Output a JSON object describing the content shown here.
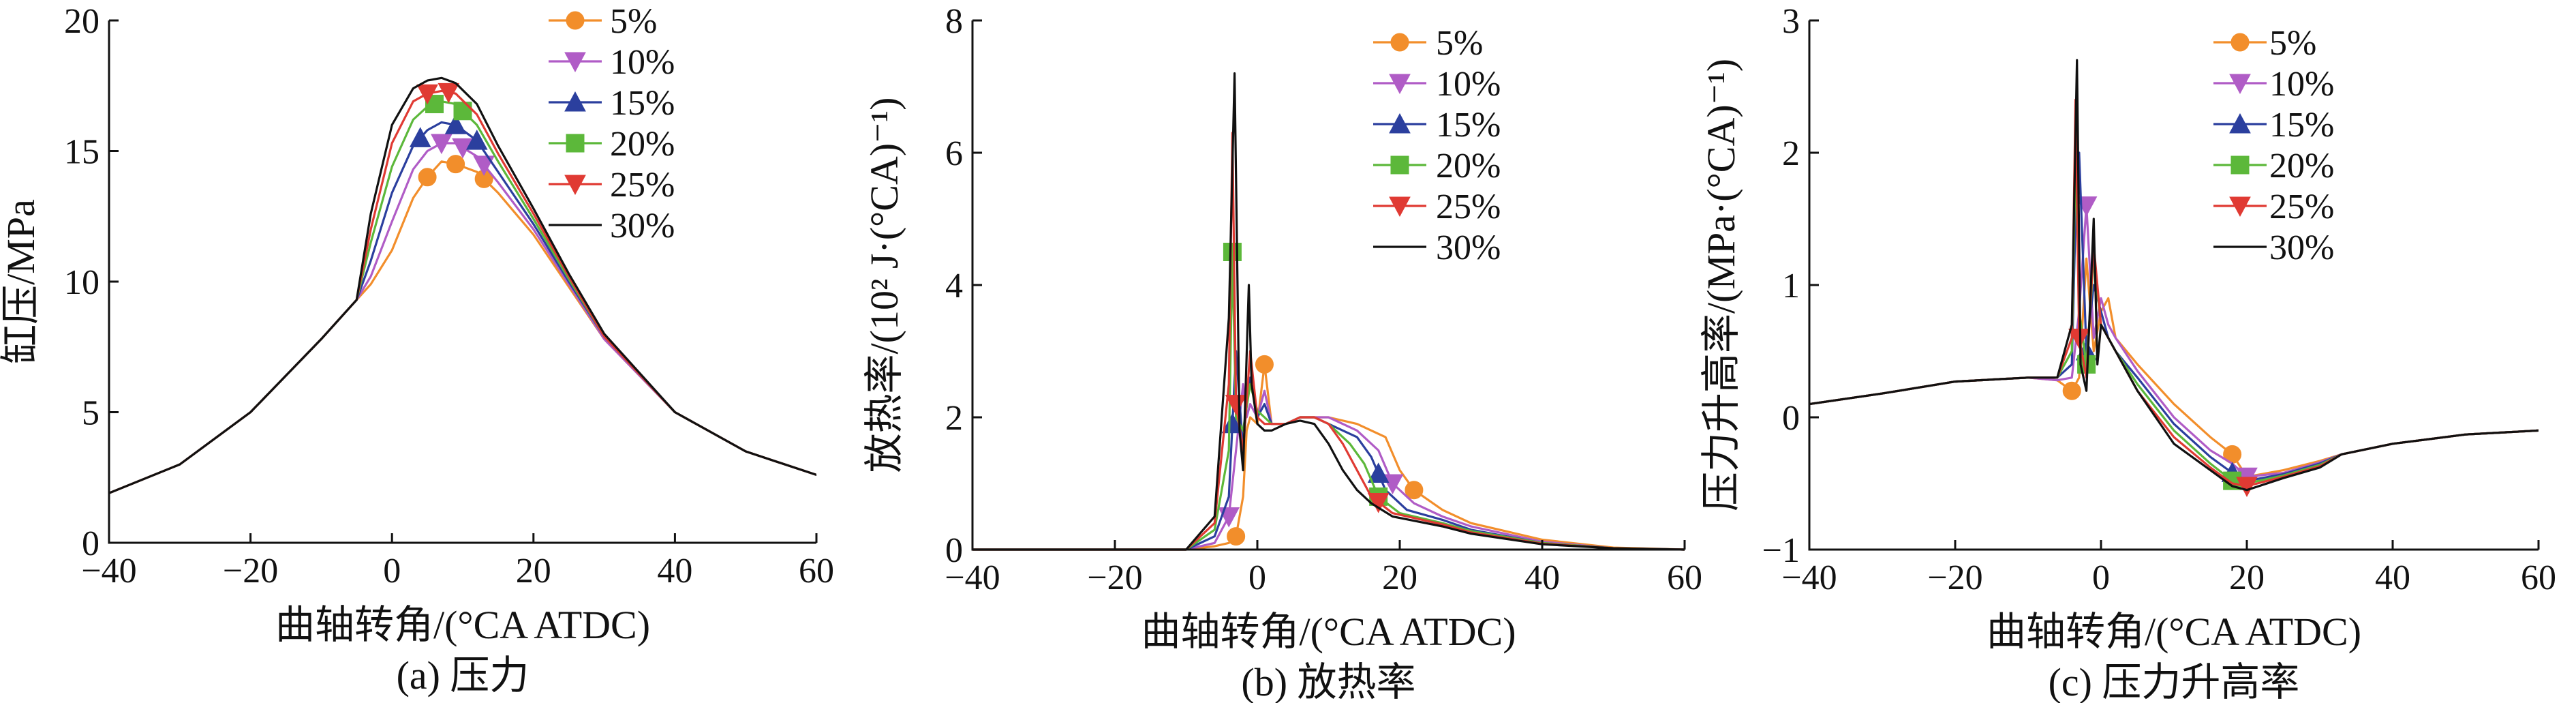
{
  "chart_data": [
    {
      "type": "line",
      "caption": "(a) 压力",
      "xlabel": "曲轴转角/(°CA ATDC)",
      "ylabel": "缸压/MPa",
      "xlim": [
        -40,
        60
      ],
      "ylim": [
        0,
        20
      ],
      "xticks": [
        -40,
        -20,
        0,
        20,
        40,
        60
      ],
      "yticks": [
        0,
        5,
        10,
        15,
        20
      ],
      "legend_position": "top-right",
      "series": [
        {
          "name": "5%",
          "color": "#f28e2b",
          "marker": "circle",
          "x": [
            -40,
            -30,
            -20,
            -10,
            -5,
            -3,
            0,
            3,
            5,
            7,
            9,
            12,
            15,
            20,
            25,
            30,
            40,
            50,
            60
          ],
          "y": [
            1.9,
            3.0,
            5.0,
            7.8,
            9.3,
            9.9,
            11.2,
            13.2,
            14.0,
            14.6,
            14.5,
            14.2,
            13.4,
            11.8,
            9.8,
            7.8,
            5.0,
            3.5,
            2.6
          ],
          "marker_x": [
            5,
            9,
            13
          ]
        },
        {
          "name": "10%",
          "color": "#b05cc6",
          "marker": "triangle-down",
          "x": [
            -40,
            -30,
            -20,
            -10,
            -5,
            -3,
            0,
            3,
            5,
            7,
            9,
            12,
            15,
            20,
            25,
            30,
            40,
            50,
            60
          ],
          "y": [
            1.9,
            3.0,
            5.0,
            7.8,
            9.3,
            10.2,
            12.3,
            14.3,
            15.0,
            15.3,
            15.3,
            14.8,
            13.8,
            12.0,
            9.9,
            7.8,
            5.0,
            3.5,
            2.6
          ],
          "marker_x": [
            7,
            10,
            13
          ]
        },
        {
          "name": "15%",
          "color": "#2b3f9e",
          "marker": "triangle-up",
          "x": [
            -40,
            -30,
            -20,
            -10,
            -5,
            -3,
            0,
            3,
            5,
            7,
            9,
            12,
            15,
            20,
            25,
            30,
            40,
            50,
            60
          ],
          "y": [
            1.9,
            3.0,
            5.0,
            7.8,
            9.3,
            10.8,
            13.4,
            15.2,
            15.8,
            16.1,
            16.0,
            15.4,
            14.2,
            12.2,
            10.0,
            7.9,
            5.0,
            3.5,
            2.6
          ],
          "marker_x": [
            4,
            9,
            12
          ]
        },
        {
          "name": "20%",
          "color": "#5cb83a",
          "marker": "square",
          "x": [
            -40,
            -30,
            -20,
            -10,
            -5,
            -3,
            0,
            3,
            5,
            7,
            9,
            12,
            15,
            20,
            25,
            30,
            40,
            50,
            60
          ],
          "y": [
            1.9,
            3.0,
            5.0,
            7.8,
            9.3,
            11.5,
            14.4,
            16.2,
            16.7,
            16.9,
            16.8,
            16.0,
            14.6,
            12.4,
            10.1,
            7.9,
            5.0,
            3.5,
            2.6
          ],
          "marker_x": [
            6,
            10
          ]
        },
        {
          "name": "25%",
          "color": "#e03a33",
          "marker": "triangle-down",
          "x": [
            -40,
            -30,
            -20,
            -10,
            -5,
            -3,
            0,
            3,
            5,
            7,
            9,
            12,
            15,
            20,
            25,
            30,
            40,
            50,
            60
          ],
          "y": [
            1.9,
            3.0,
            5.0,
            7.8,
            9.3,
            12.0,
            15.3,
            16.9,
            17.2,
            17.3,
            17.2,
            16.4,
            14.9,
            12.6,
            10.2,
            7.9,
            5.0,
            3.5,
            2.6
          ],
          "marker_x": [
            5,
            8
          ]
        },
        {
          "name": "30%",
          "color": "#111111",
          "marker": "none",
          "x": [
            -40,
            -30,
            -20,
            -10,
            -5,
            -3,
            0,
            3,
            5,
            7,
            9,
            12,
            15,
            20,
            25,
            30,
            40,
            50,
            60
          ],
          "y": [
            1.9,
            3.0,
            5.0,
            7.8,
            9.3,
            12.6,
            16.0,
            17.4,
            17.7,
            17.8,
            17.6,
            16.8,
            15.2,
            12.8,
            10.3,
            8.0,
            5.0,
            3.5,
            2.6
          ],
          "marker_x": []
        }
      ]
    },
    {
      "type": "line",
      "caption": "(b) 放热率",
      "xlabel": "曲轴转角/(°CA ATDC)",
      "ylabel": "放热率/(10² J·(°CA)⁻¹)",
      "xlim": [
        -40,
        60
      ],
      "ylim": [
        0,
        8
      ],
      "xticks": [
        -40,
        -20,
        0,
        20,
        40,
        60
      ],
      "yticks": [
        0,
        2,
        4,
        6,
        8
      ],
      "legend_position": "top-right",
      "series": [
        {
          "name": "5%",
          "color": "#f28e2b",
          "marker": "circle",
          "x": [
            -40,
            -10,
            -6,
            -4,
            -3,
            -2,
            -1.5,
            -1,
            0,
            1,
            2,
            4,
            6,
            8,
            10,
            14,
            18,
            20,
            22,
            26,
            30,
            40,
            50,
            60
          ],
          "y": [
            0,
            0,
            0.05,
            0.1,
            0.2,
            0.8,
            1.8,
            2.0,
            1.9,
            2.8,
            1.9,
            1.9,
            2.0,
            2.0,
            2.0,
            1.9,
            1.7,
            1.2,
            0.9,
            0.6,
            0.4,
            0.15,
            0.03,
            0
          ],
          "marker_x": [
            -3,
            1,
            22
          ]
        },
        {
          "name": "10%",
          "color": "#b05cc6",
          "marker": "triangle-down",
          "x": [
            -40,
            -10,
            -6,
            -4,
            -3,
            -2,
            -1.5,
            -1,
            0,
            1,
            2,
            4,
            6,
            8,
            10,
            14,
            17,
            19,
            22,
            26,
            30,
            40,
            50,
            60
          ],
          "y": [
            0,
            0,
            0.1,
            0.5,
            1.5,
            2.5,
            2.0,
            2.2,
            2.0,
            2.4,
            1.9,
            1.9,
            2.0,
            2.0,
            2.0,
            1.8,
            1.5,
            1.0,
            0.7,
            0.5,
            0.35,
            0.12,
            0.02,
            0
          ],
          "marker_x": [
            -4,
            19
          ]
        },
        {
          "name": "15%",
          "color": "#2b3f9e",
          "marker": "triangle-up",
          "x": [
            -40,
            -10,
            -6,
            -4,
            -3,
            -2,
            -1.5,
            -1,
            0,
            1,
            2,
            4,
            6,
            8,
            10,
            14,
            16,
            18,
            21,
            26,
            30,
            40,
            50,
            60
          ],
          "y": [
            0,
            0,
            0.2,
            0.8,
            3.0,
            1.5,
            2.2,
            2.6,
            2.0,
            2.2,
            1.9,
            1.9,
            2.0,
            2.0,
            1.9,
            1.7,
            1.4,
            0.9,
            0.6,
            0.45,
            0.3,
            0.1,
            0.02,
            0
          ],
          "marker_x": [
            -3.5,
            17
          ]
        },
        {
          "name": "20%",
          "color": "#5cb83a",
          "marker": "square",
          "x": [
            -40,
            -10,
            -6,
            -4,
            -3.5,
            -3,
            -2,
            -1,
            0,
            1,
            2,
            4,
            6,
            8,
            10,
            13,
            15,
            17,
            20,
            26,
            30,
            40,
            50,
            60
          ],
          "y": [
            0,
            0,
            0.3,
            1.5,
            4.5,
            2.0,
            1.8,
            2.5,
            2.1,
            2.0,
            1.9,
            1.9,
            2.0,
            2.0,
            1.9,
            1.6,
            1.3,
            0.8,
            0.55,
            0.4,
            0.28,
            0.1,
            0.02,
            0
          ],
          "marker_x": [
            -3.5,
            17
          ]
        },
        {
          "name": "25%",
          "color": "#e03a33",
          "marker": "triangle-down",
          "x": [
            -40,
            -10,
            -6,
            -4,
            -3.5,
            -3,
            -2,
            -1,
            0,
            1,
            2,
            4,
            6,
            8,
            10,
            12,
            14,
            16,
            19,
            26,
            30,
            40,
            50,
            60
          ],
          "y": [
            0,
            0,
            0.4,
            2.5,
            6.3,
            2.2,
            1.5,
            3.0,
            2.0,
            1.9,
            1.9,
            1.9,
            2.0,
            2.0,
            1.9,
            1.6,
            1.2,
            0.8,
            0.55,
            0.38,
            0.26,
            0.09,
            0.02,
            0
          ],
          "marker_x": [
            -3,
            17
          ]
        },
        {
          "name": "30%",
          "color": "#111111",
          "marker": "none",
          "x": [
            -40,
            -10,
            -6,
            -4,
            -3.2,
            -2.5,
            -2,
            -1.2,
            -0.8,
            0,
            1,
            2,
            4,
            6,
            8,
            10,
            12,
            14,
            16,
            19,
            26,
            30,
            40,
            50,
            60
          ],
          "y": [
            0,
            0,
            0.5,
            3.5,
            7.2,
            1.8,
            1.2,
            4.0,
            2.5,
            1.9,
            1.8,
            1.8,
            1.9,
            1.95,
            1.9,
            1.6,
            1.2,
            0.9,
            0.7,
            0.5,
            0.35,
            0.24,
            0.08,
            0.02,
            0
          ],
          "marker_x": []
        }
      ]
    },
    {
      "type": "line",
      "caption": "(c) 压力升高率",
      "xlabel": "曲轴转角/(°CA ATDC)",
      "ylabel": "压力升高率/(MPa·(°CA)⁻¹)",
      "xlim": [
        -40,
        60
      ],
      "ylim": [
        -1,
        3
      ],
      "xticks": [
        -40,
        -20,
        0,
        20,
        40,
        60
      ],
      "yticks": [
        -1,
        0,
        1,
        2,
        3
      ],
      "legend_position": "top-right",
      "series": [
        {
          "name": "5%",
          "color": "#f28e2b",
          "marker": "circle",
          "x": [
            -40,
            -30,
            -20,
            -10,
            -6,
            -4,
            -3,
            -2,
            -1,
            0,
            1,
            2,
            5,
            10,
            15,
            18,
            20,
            25,
            30,
            33,
            40,
            50,
            60
          ],
          "y": [
            0.1,
            0.18,
            0.27,
            0.3,
            0.28,
            0.2,
            0.3,
            1.2,
            0.5,
            0.8,
            0.9,
            0.6,
            0.4,
            0.1,
            -0.15,
            -0.28,
            -0.45,
            -0.4,
            -0.33,
            -0.28,
            -0.2,
            -0.13,
            -0.1
          ],
          "marker_x": [
            -4,
            18
          ]
        },
        {
          "name": "10%",
          "color": "#b05cc6",
          "marker": "triangle-down",
          "x": [
            -40,
            -30,
            -20,
            -10,
            -6,
            -4,
            -3,
            -2,
            -1,
            0,
            1,
            2,
            5,
            10,
            15,
            18,
            20,
            25,
            30,
            33,
            40,
            50,
            60
          ],
          "y": [
            0.1,
            0.18,
            0.27,
            0.3,
            0.28,
            0.3,
            0.8,
            1.6,
            0.6,
            0.9,
            0.7,
            0.6,
            0.35,
            0.0,
            -0.25,
            -0.35,
            -0.45,
            -0.42,
            -0.34,
            -0.28,
            -0.2,
            -0.13,
            -0.1
          ],
          "marker_x": [
            -2,
            20
          ]
        },
        {
          "name": "15%",
          "color": "#2b3f9e",
          "marker": "triangle-up",
          "x": [
            -40,
            -30,
            -20,
            -10,
            -6,
            -4,
            -3.5,
            -3,
            -2,
            -1,
            0,
            1,
            2,
            5,
            10,
            15,
            18,
            20,
            25,
            30,
            33,
            40,
            50,
            60
          ],
          "y": [
            0.1,
            0.18,
            0.27,
            0.3,
            0.3,
            0.4,
            1.5,
            2.0,
            0.5,
            1.0,
            0.8,
            0.6,
            0.5,
            0.3,
            -0.05,
            -0.3,
            -0.42,
            -0.48,
            -0.43,
            -0.35,
            -0.28,
            -0.2,
            -0.13,
            -0.1
          ],
          "marker_x": [
            -2,
            18
          ]
        },
        {
          "name": "20%",
          "color": "#5cb83a",
          "marker": "square",
          "x": [
            -40,
            -30,
            -20,
            -10,
            -6,
            -4,
            -3.5,
            -3,
            -2,
            -1,
            0,
            1,
            2,
            5,
            10,
            15,
            18,
            20,
            25,
            30,
            33,
            40,
            50,
            60
          ],
          "y": [
            0.1,
            0.18,
            0.27,
            0.3,
            0.3,
            0.5,
            2.0,
            0.8,
            0.4,
            1.2,
            0.7,
            0.6,
            0.5,
            0.25,
            -0.1,
            -0.35,
            -0.48,
            -0.5,
            -0.44,
            -0.36,
            -0.28,
            -0.2,
            -0.13,
            -0.1
          ],
          "marker_x": [
            -2,
            18
          ]
        },
        {
          "name": "25%",
          "color": "#e03a33",
          "marker": "triangle-down",
          "x": [
            -40,
            -30,
            -20,
            -10,
            -6,
            -4,
            -3.5,
            -3,
            -2,
            -1,
            0,
            1,
            2,
            5,
            10,
            15,
            18,
            20,
            25,
            30,
            33,
            40,
            50,
            60
          ],
          "y": [
            0.1,
            0.18,
            0.27,
            0.3,
            0.3,
            0.6,
            2.4,
            0.6,
            0.3,
            1.3,
            0.7,
            0.6,
            0.5,
            0.2,
            -0.15,
            -0.38,
            -0.5,
            -0.52,
            -0.45,
            -0.37,
            -0.28,
            -0.2,
            -0.13,
            -0.1
          ],
          "marker_x": [
            -3,
            20
          ]
        },
        {
          "name": "30%",
          "color": "#111111",
          "marker": "none",
          "x": [
            -40,
            -30,
            -20,
            -10,
            -6,
            -4,
            -3.3,
            -2.8,
            -2,
            -1,
            -0.5,
            0,
            1,
            2,
            5,
            10,
            15,
            18,
            20,
            25,
            30,
            33,
            40,
            50,
            60
          ],
          "y": [
            0.1,
            0.18,
            0.27,
            0.3,
            0.3,
            0.7,
            2.7,
            0.4,
            0.2,
            1.5,
            0.4,
            0.7,
            0.6,
            0.5,
            0.2,
            -0.2,
            -0.4,
            -0.52,
            -0.55,
            -0.46,
            -0.38,
            -0.28,
            -0.2,
            -0.13,
            -0.1
          ],
          "marker_x": []
        }
      ]
    }
  ]
}
